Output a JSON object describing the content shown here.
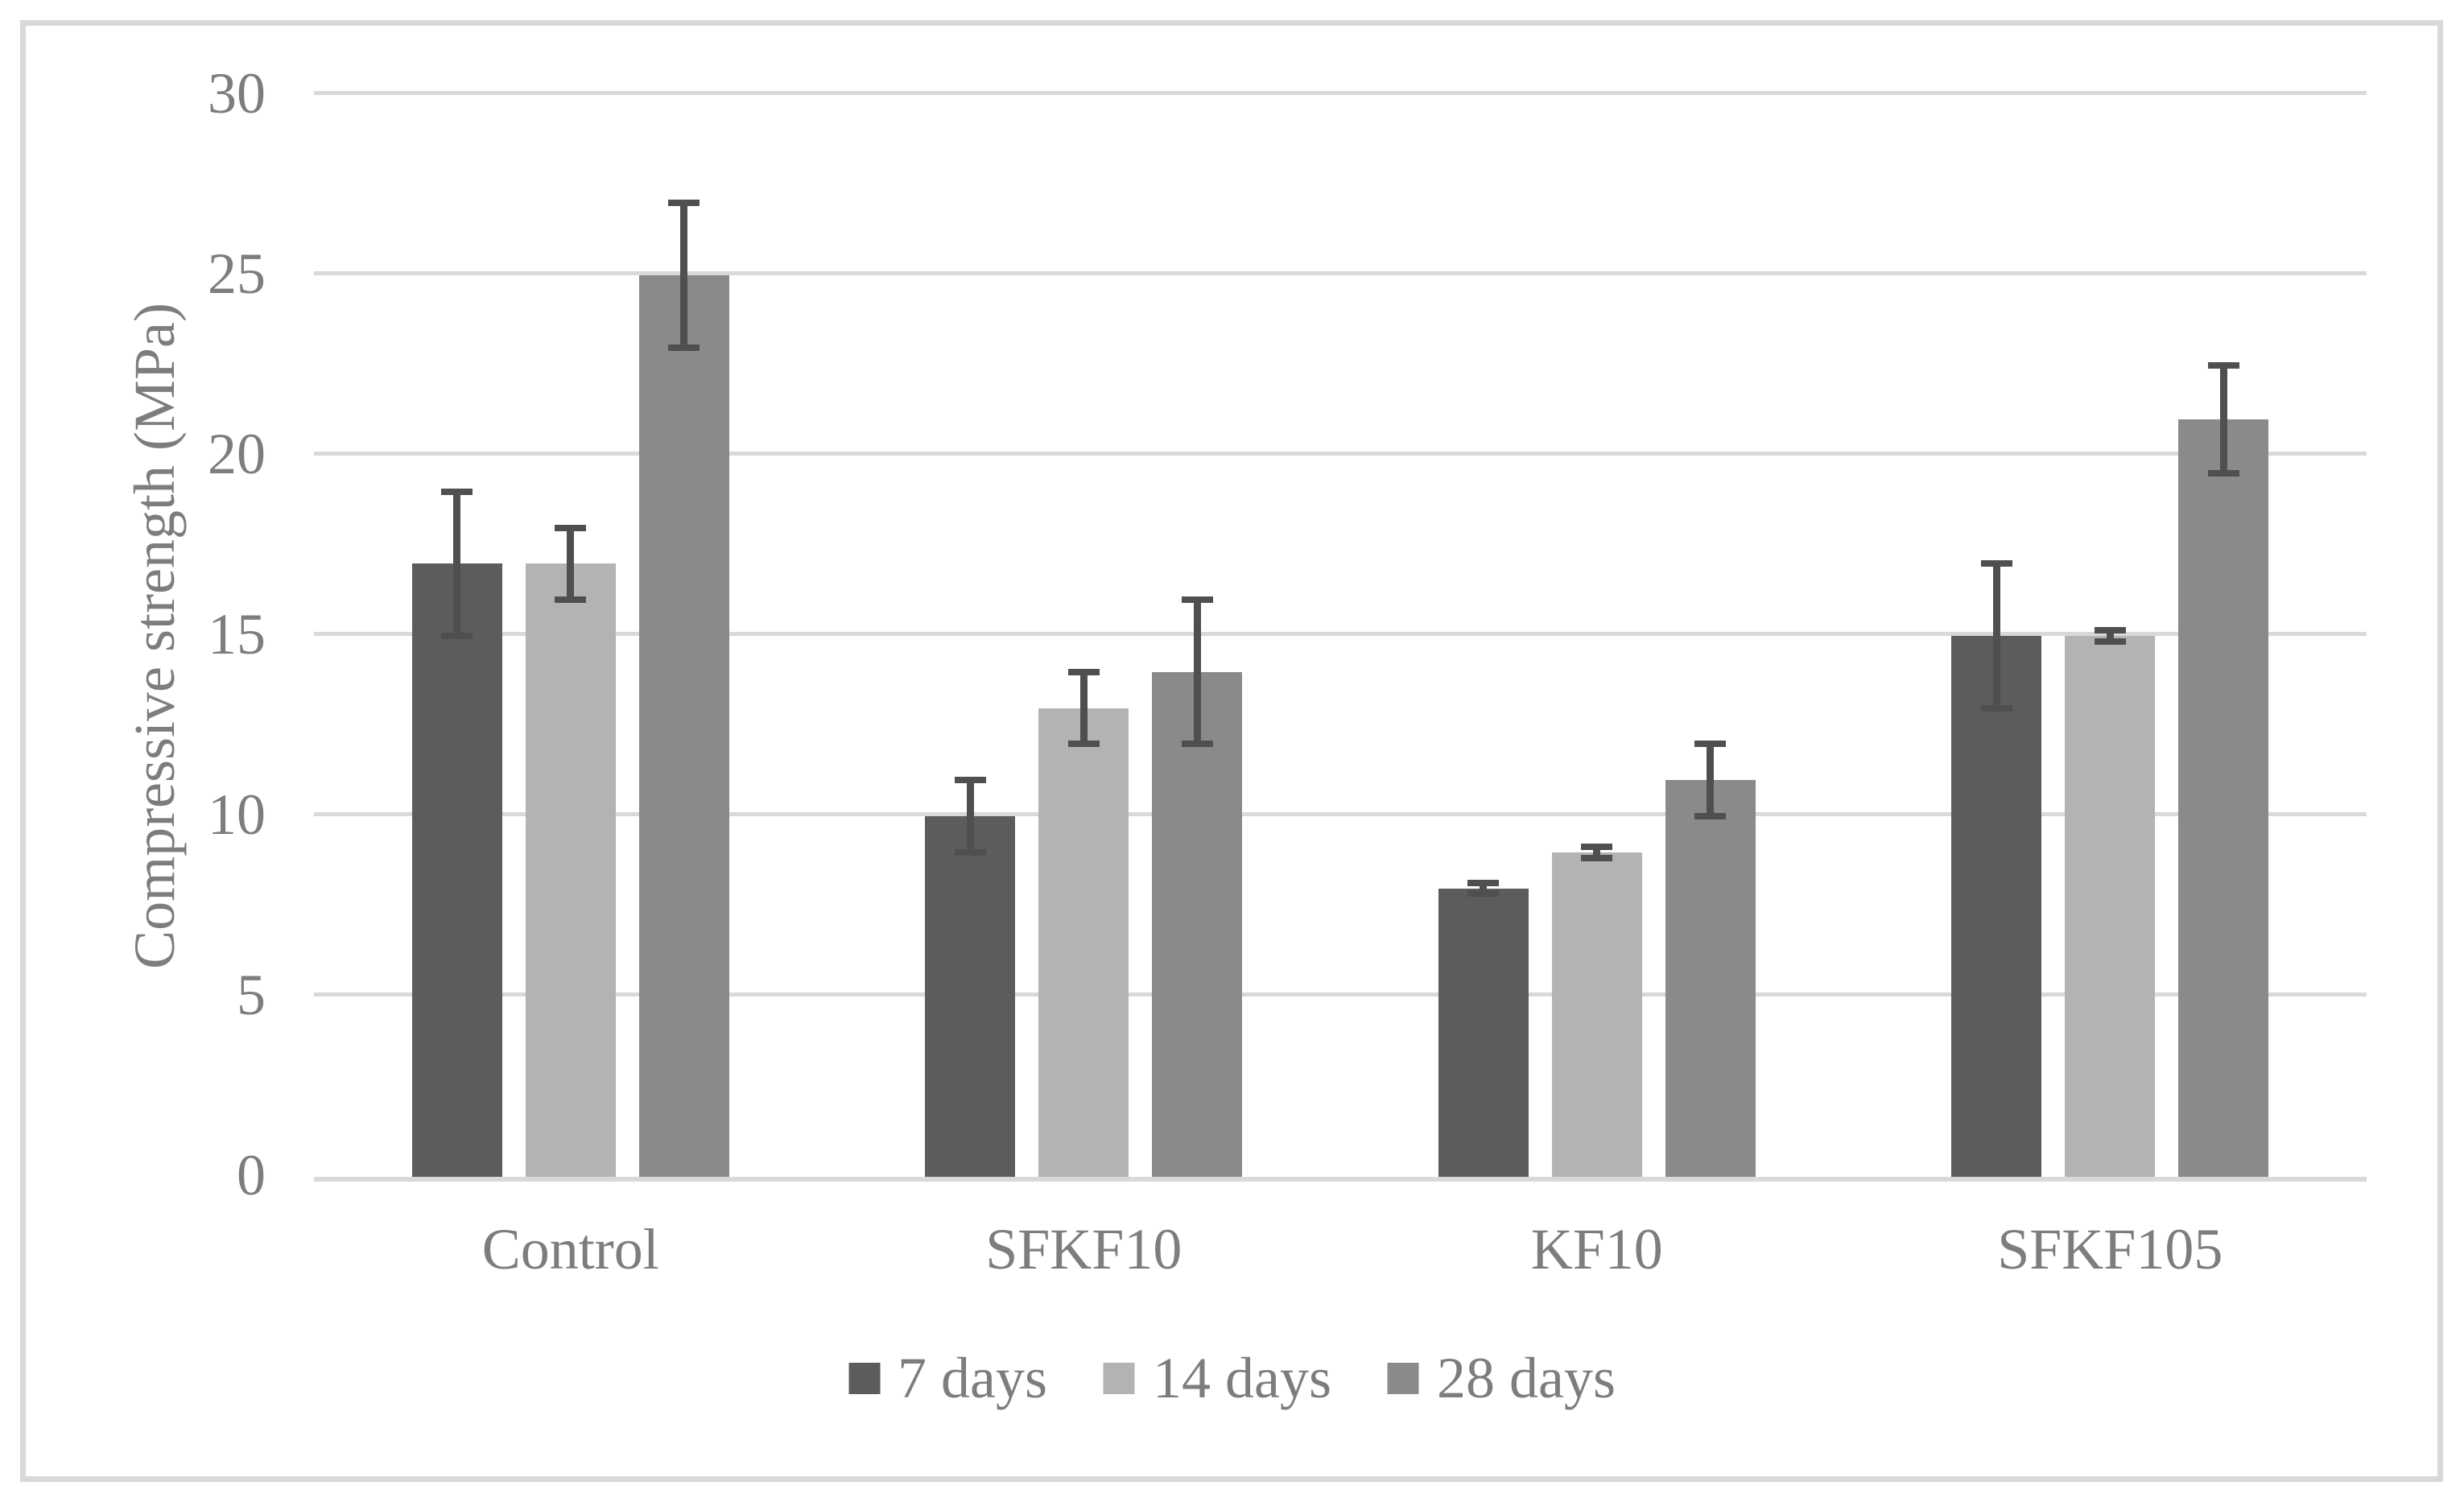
{
  "figure": {
    "background": "#ffffff",
    "border_color": "#d9d9d9"
  },
  "chart_data": {
    "type": "bar",
    "title": "",
    "xlabel": "",
    "ylabel": "Compressive strength (MPa)",
    "categories": [
      "Control",
      "SFKF10",
      "KF10",
      "SFKF105"
    ],
    "series": [
      {
        "name": "7 days",
        "color": "#5c5c5c",
        "values": [
          17,
          10,
          8,
          15
        ],
        "errors": [
          2,
          1,
          0.15,
          2
        ]
      },
      {
        "name": "14 days",
        "color": "#b3b3b3",
        "values": [
          17,
          13,
          9,
          15
        ],
        "errors": [
          1,
          1,
          0.15,
          0.15
        ]
      },
      {
        "name": "28 days",
        "color": "#8a8a8a",
        "values": [
          25,
          14,
          11,
          21
        ],
        "errors": [
          2,
          2,
          1,
          1.5
        ]
      }
    ],
    "ylim": [
      0,
      30
    ],
    "ytick_step": 5,
    "yticks": [
      0,
      5,
      10,
      15,
      20,
      25,
      30
    ],
    "grid": true,
    "gridline_color": "#d9d9d9",
    "error_bar_color": "#4f4f4f",
    "text_color": "#7d7d7d",
    "legend_position": "bottom"
  }
}
